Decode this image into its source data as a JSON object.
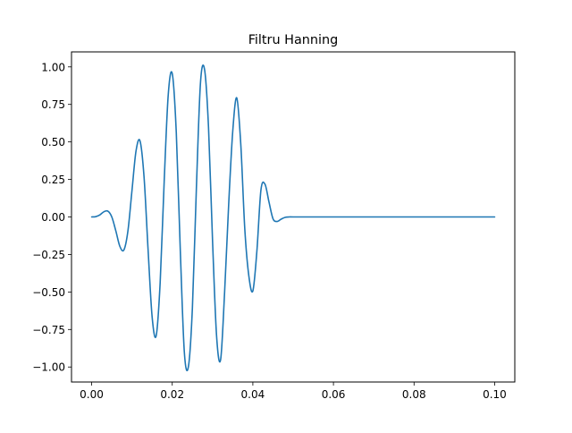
{
  "chart_data": {
    "type": "line",
    "title": "Filtru Hanning",
    "xlabel": "",
    "ylabel": "",
    "xlim": [
      -0.005,
      0.105
    ],
    "ylim": [
      -1.1,
      1.1
    ],
    "grid": false,
    "x_ticks": [
      0.0,
      0.02,
      0.04,
      0.06,
      0.08,
      0.1
    ],
    "x_tick_labels": [
      "0.00",
      "0.02",
      "0.04",
      "0.06",
      "0.08",
      "0.10"
    ],
    "y_ticks": [
      1.0,
      0.75,
      0.5,
      0.25,
      0.0,
      -0.25,
      -0.5,
      -0.75,
      -1.0
    ],
    "y_tick_labels": [
      "1.00",
      "0.75",
      "0.50",
      "0.25",
      "0.00",
      "−0.25",
      "−0.50",
      "−0.75",
      "−1.00"
    ],
    "series": [
      {
        "color": "#1f77b4",
        "x": [
          0.0,
          0.001,
          0.002,
          0.003,
          0.004,
          0.005,
          0.006,
          0.007,
          0.008,
          0.009,
          0.01,
          0.011,
          0.012,
          0.013,
          0.014,
          0.015,
          0.016,
          0.017,
          0.018,
          0.019,
          0.02,
          0.021,
          0.022,
          0.023,
          0.024,
          0.025,
          0.026,
          0.027,
          0.028,
          0.029,
          0.03,
          0.031,
          0.032,
          0.033,
          0.034,
          0.035,
          0.036,
          0.037,
          0.038,
          0.039,
          0.04,
          0.041,
          0.042,
          0.043,
          0.044,
          0.045,
          0.046,
          0.047,
          0.048,
          0.049,
          0.05,
          0.055,
          0.06,
          0.065,
          0.07,
          0.075,
          0.08,
          0.085,
          0.09,
          0.095,
          0.1
        ],
        "y": [
          0.0,
          0.002,
          0.013,
          0.034,
          0.039,
          0.0,
          -0.093,
          -0.196,
          -0.22,
          -0.093,
          0.174,
          0.438,
          0.507,
          0.267,
          -0.217,
          -0.664,
          -0.793,
          -0.438,
          0.238,
          0.813,
          0.955,
          0.563,
          -0.226,
          -0.901,
          -0.999,
          -0.607,
          0.201,
          0.892,
          0.985,
          0.597,
          -0.16,
          -0.793,
          -0.951,
          -0.497,
          0.082,
          0.567,
          0.794,
          0.487,
          -0.08,
          -0.392,
          -0.493,
          -0.228,
          0.178,
          0.219,
          0.1,
          -0.012,
          -0.03,
          -0.015,
          -0.003,
          0.0,
          0.0,
          0.0,
          0.0,
          0.0,
          0.0,
          0.0,
          0.0,
          0.0,
          0.0,
          0.0,
          0.0
        ]
      }
    ]
  }
}
